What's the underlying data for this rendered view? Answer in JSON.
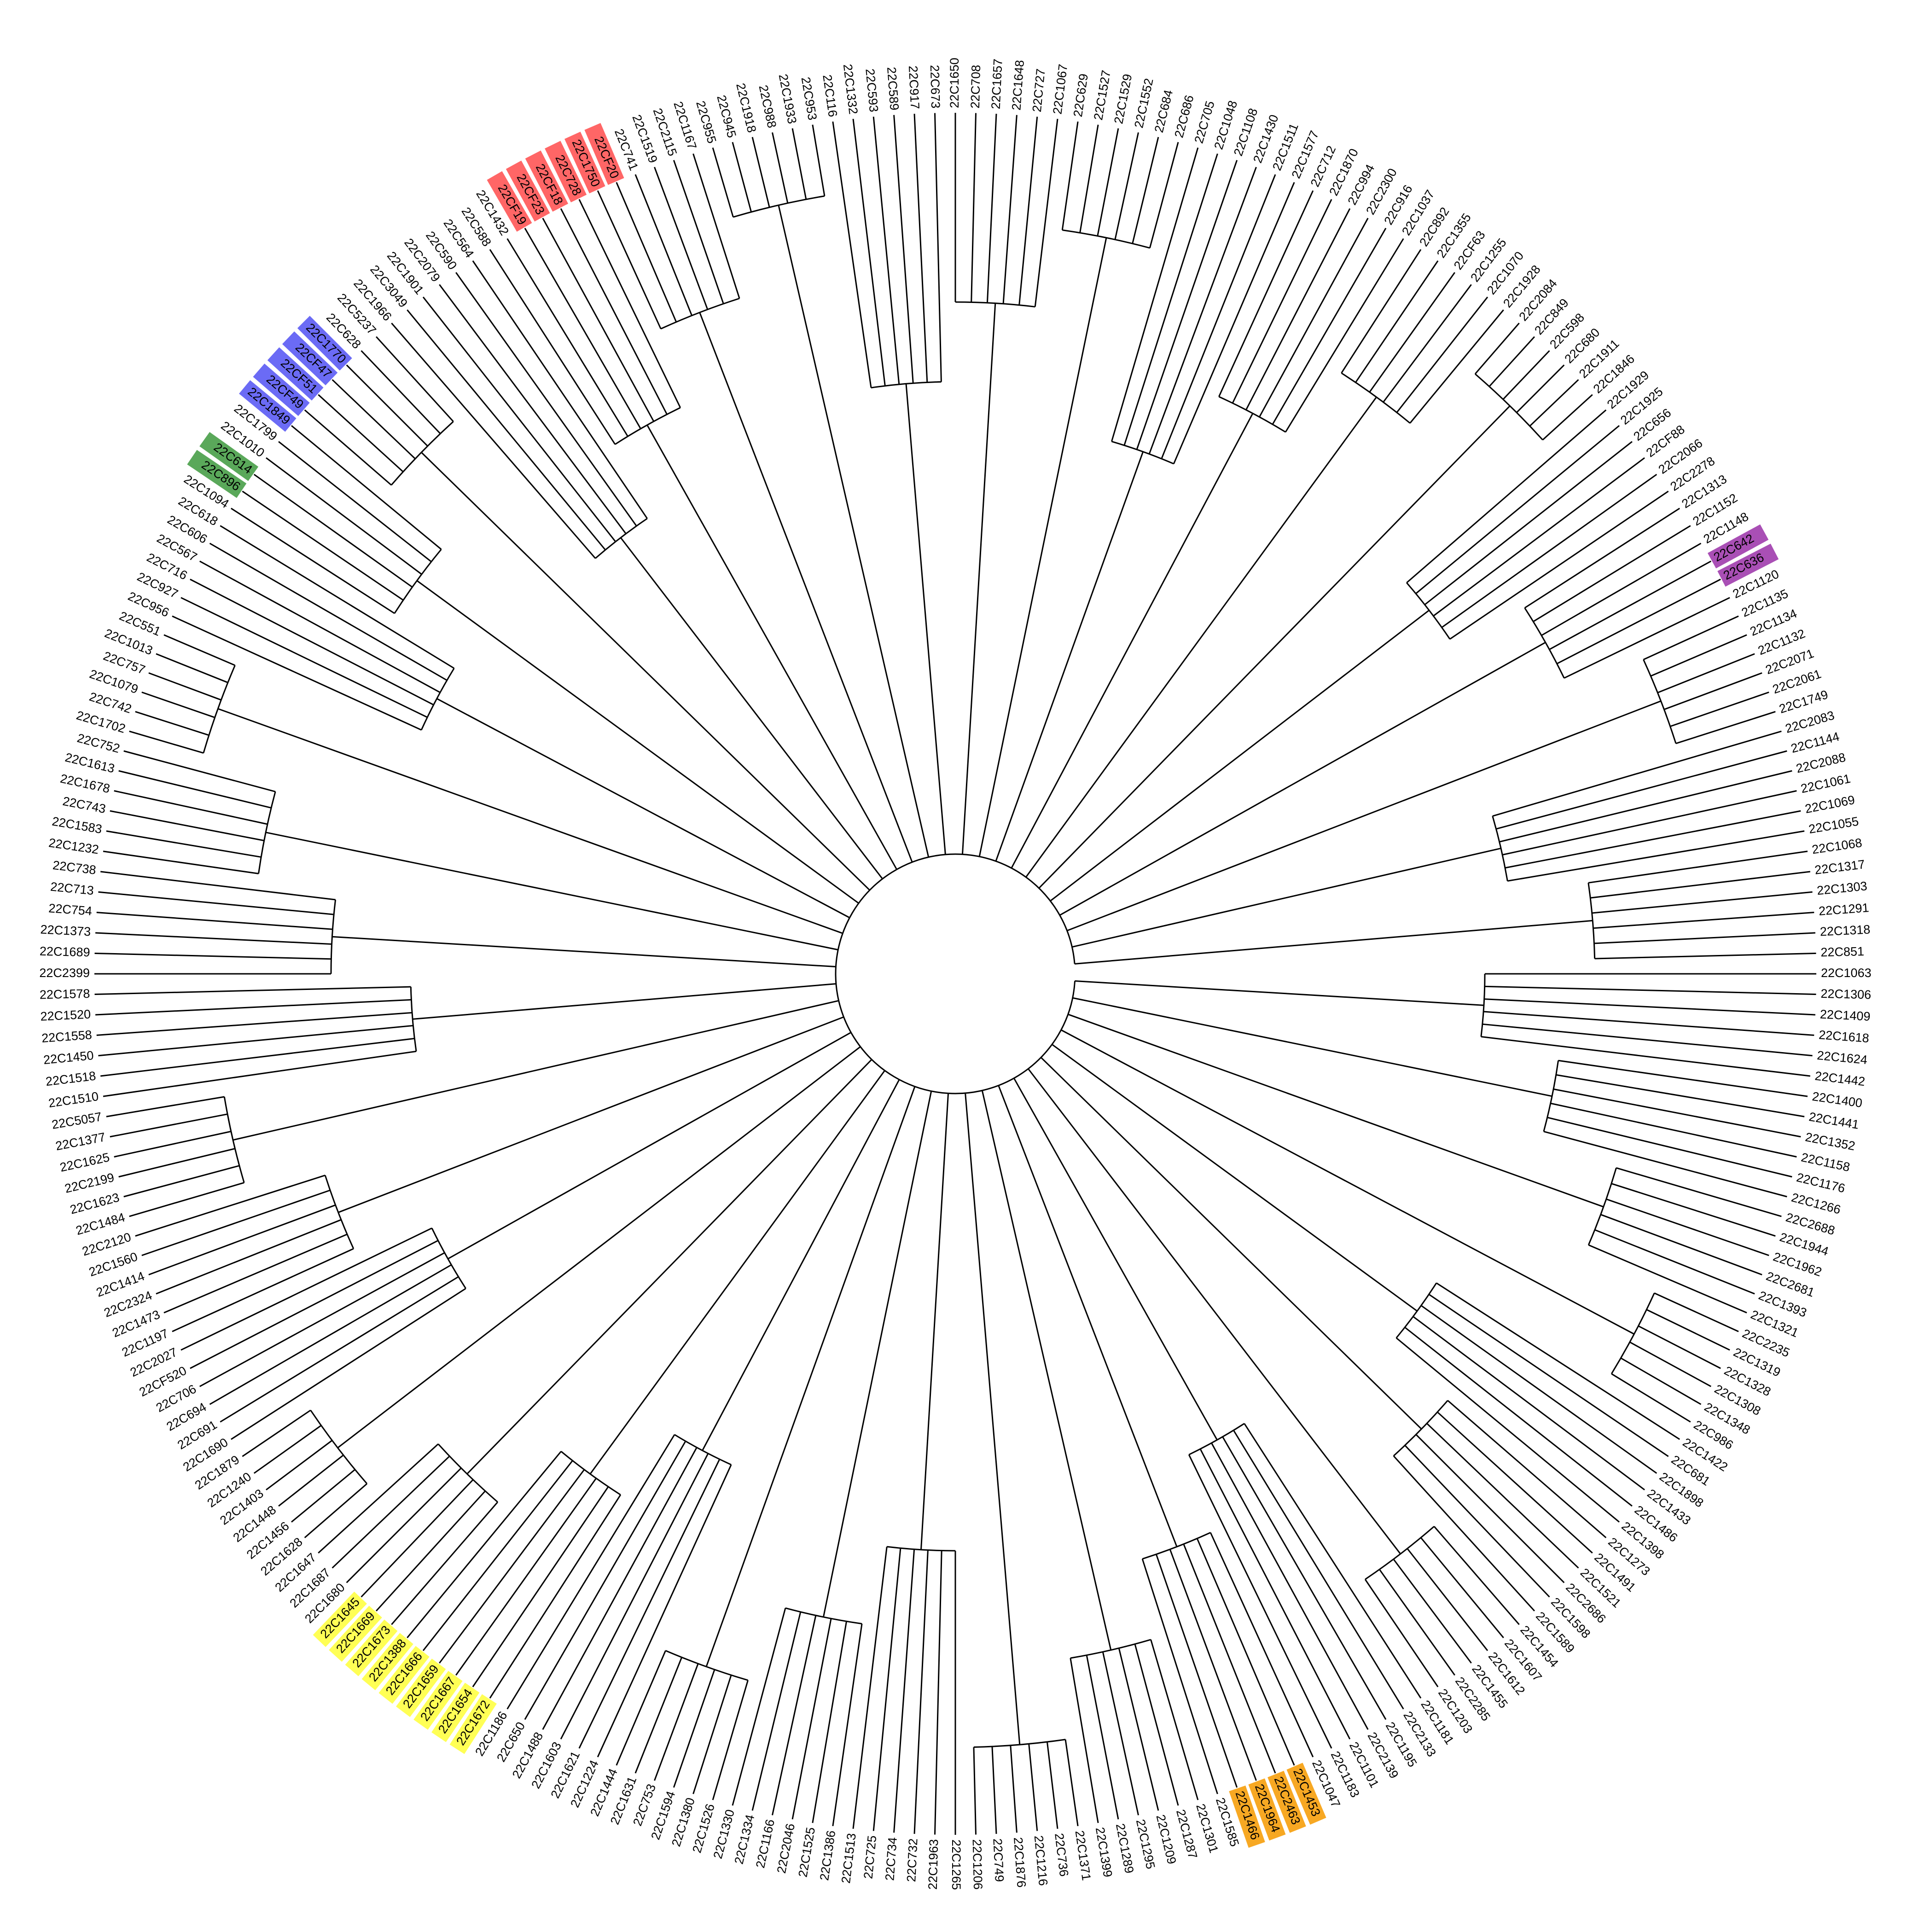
{
  "leaves": [
    {
      "label": "22C1063"
    },
    {
      "label": "22C1306"
    },
    {
      "label": "22C1409"
    },
    {
      "label": "22C1618"
    },
    {
      "label": "22C1624"
    },
    {
      "label": "22C1442"
    },
    {
      "label": "22C1400"
    },
    {
      "label": "22C1441"
    },
    {
      "label": "22C1352"
    },
    {
      "label": "22C1158"
    },
    {
      "label": "22C1176"
    },
    {
      "label": "22C1266"
    },
    {
      "label": "22C2688"
    },
    {
      "label": "22C1944"
    },
    {
      "label": "22C1962"
    },
    {
      "label": "22C2681"
    },
    {
      "label": "22C1393"
    },
    {
      "label": "22C1321"
    },
    {
      "label": "22C2235"
    },
    {
      "label": "22C1319"
    },
    {
      "label": "22C1328"
    },
    {
      "label": "22C1308"
    },
    {
      "label": "22C1348"
    },
    {
      "label": "22C986"
    },
    {
      "label": "22C1422"
    },
    {
      "label": "22C681"
    },
    {
      "label": "22C1898"
    },
    {
      "label": "22C1433"
    },
    {
      "label": "22C1486"
    },
    {
      "label": "22C1398"
    },
    {
      "label": "22C1273"
    },
    {
      "label": "22C1491"
    },
    {
      "label": "22C1521"
    },
    {
      "label": "22C2686"
    },
    {
      "label": "22C1598"
    },
    {
      "label": "22C1589"
    },
    {
      "label": "22C1454"
    },
    {
      "label": "22C1607"
    },
    {
      "label": "22C1612"
    },
    {
      "label": "22C1455"
    },
    {
      "label": "22C2285"
    },
    {
      "label": "22C1203"
    },
    {
      "label": "22C1181"
    },
    {
      "label": "22C2133"
    },
    {
      "label": "22C1195"
    },
    {
      "label": "22C2139"
    },
    {
      "label": "22C1101"
    },
    {
      "label": "22C1183"
    },
    {
      "label": "22C1047"
    },
    {
      "label": "22C1453",
      "highlight": "#f7a823"
    },
    {
      "label": "22C2463",
      "highlight": "#f7a823"
    },
    {
      "label": "22C1964",
      "highlight": "#f7a823"
    },
    {
      "label": "22C1466",
      "highlight": "#f7a823"
    },
    {
      "label": "22C1585"
    },
    {
      "label": "22C1301"
    },
    {
      "label": "22C1287"
    },
    {
      "label": "22C1209"
    },
    {
      "label": "22C1295"
    },
    {
      "label": "22C1289"
    },
    {
      "label": "22C1399"
    },
    {
      "label": "22C1371"
    },
    {
      "label": "22C736"
    },
    {
      "label": "22C1216"
    },
    {
      "label": "22C1876"
    },
    {
      "label": "22C749"
    },
    {
      "label": "22C1206"
    },
    {
      "label": "22C1265"
    },
    {
      "label": "22C1963"
    },
    {
      "label": "22C732"
    },
    {
      "label": "22C734"
    },
    {
      "label": "22C725"
    },
    {
      "label": "22C1513"
    },
    {
      "label": "22C1386"
    },
    {
      "label": "22C1525"
    },
    {
      "label": "22C2046"
    },
    {
      "label": "22C1166"
    },
    {
      "label": "22C1334"
    },
    {
      "label": "22C1330"
    },
    {
      "label": "22C1526"
    },
    {
      "label": "22C1380"
    },
    {
      "label": "22C1594"
    },
    {
      "label": "22C753"
    },
    {
      "label": "22C1631"
    },
    {
      "label": "22C1444"
    },
    {
      "label": "22C1224"
    },
    {
      "label": "22C1621"
    },
    {
      "label": "22C1603"
    },
    {
      "label": "22C1488"
    },
    {
      "label": "22C650"
    },
    {
      "label": "22C1186"
    },
    {
      "label": "22C1672",
      "highlight": "#ffff55"
    },
    {
      "label": "22C1654",
      "highlight": "#ffff55"
    },
    {
      "label": "22C1667",
      "highlight": "#ffff55"
    },
    {
      "label": "22C1659",
      "highlight": "#ffff55"
    },
    {
      "label": "22C1666",
      "highlight": "#ffff55"
    },
    {
      "label": "22C1388",
      "highlight": "#ffff55"
    },
    {
      "label": "22C1673",
      "highlight": "#ffff55"
    },
    {
      "label": "22C1669",
      "highlight": "#ffff55"
    },
    {
      "label": "22C1645",
      "highlight": "#ffff55"
    },
    {
      "label": "22C1680"
    },
    {
      "label": "22C1687"
    },
    {
      "label": "22C1647"
    },
    {
      "label": "22C1628"
    },
    {
      "label": "22C1456"
    },
    {
      "label": "22C1448"
    },
    {
      "label": "22C1403"
    },
    {
      "label": "22C1240"
    },
    {
      "label": "22C1879"
    },
    {
      "label": "22C1690"
    },
    {
      "label": "22C691"
    },
    {
      "label": "22C694"
    },
    {
      "label": "22C706"
    },
    {
      "label": "22CF520"
    },
    {
      "label": "22C2027"
    },
    {
      "label": "22C1197"
    },
    {
      "label": "22C1473"
    },
    {
      "label": "22C2324"
    },
    {
      "label": "22C1414"
    },
    {
      "label": "22C1560"
    },
    {
      "label": "22C2120"
    },
    {
      "label": "22C1484"
    },
    {
      "label": "22C1623"
    },
    {
      "label": "22C2199"
    },
    {
      "label": "22C1625"
    },
    {
      "label": "22C1377"
    },
    {
      "label": "22C5057"
    },
    {
      "label": "22C1510"
    },
    {
      "label": "22C1518"
    },
    {
      "label": "22C1450"
    },
    {
      "label": "22C1558"
    },
    {
      "label": "22C1520"
    },
    {
      "label": "22C1578"
    },
    {
      "label": "22C2399"
    },
    {
      "label": "22C1689"
    },
    {
      "label": "22C1373"
    },
    {
      "label": "22C754"
    },
    {
      "label": "22C713"
    },
    {
      "label": "22C738"
    },
    {
      "label": "22C1232"
    },
    {
      "label": "22C1583"
    },
    {
      "label": "22C743"
    },
    {
      "label": "22C1678"
    },
    {
      "label": "22C1613"
    },
    {
      "label": "22C752"
    },
    {
      "label": "22C1702"
    },
    {
      "label": "22C742"
    },
    {
      "label": "22C1079"
    },
    {
      "label": "22C757"
    },
    {
      "label": "22C1013"
    },
    {
      "label": "22C551"
    },
    {
      "label": "22C956"
    },
    {
      "label": "22C927"
    },
    {
      "label": "22C716"
    },
    {
      "label": "22C567"
    },
    {
      "label": "22C606"
    },
    {
      "label": "22C618"
    },
    {
      "label": "22C1094"
    },
    {
      "label": "22C896",
      "highlight": "#5aa85a"
    },
    {
      "label": "22C614",
      "highlight": "#5aa85a"
    },
    {
      "label": "22C1010"
    },
    {
      "label": "22C1799"
    },
    {
      "label": "22C1849",
      "highlight": "#6b6bf5"
    },
    {
      "label": "22CF49",
      "highlight": "#6b6bf5"
    },
    {
      "label": "22CF51",
      "highlight": "#6b6bf5"
    },
    {
      "label": "22CF47",
      "highlight": "#6b6bf5"
    },
    {
      "label": "22C1770",
      "highlight": "#6b6bf5"
    },
    {
      "label": "22C628"
    },
    {
      "label": "22C5237"
    },
    {
      "label": "22C1966"
    },
    {
      "label": "22C3049"
    },
    {
      "label": "22C1901"
    },
    {
      "label": "22C2079"
    },
    {
      "label": "22C590"
    },
    {
      "label": "22C564"
    },
    {
      "label": "22C588"
    },
    {
      "label": "22C1432"
    },
    {
      "label": "22CF19",
      "highlight": "#ff6666"
    },
    {
      "label": "22CF23",
      "highlight": "#ff6666"
    },
    {
      "label": "22CF18",
      "highlight": "#ff6666"
    },
    {
      "label": "22C728",
      "highlight": "#ff6666"
    },
    {
      "label": "22C1750",
      "highlight": "#ff6666"
    },
    {
      "label": "22CF20",
      "highlight": "#ff6666"
    },
    {
      "label": "22C741"
    },
    {
      "label": "22C1519"
    },
    {
      "label": "22C2115"
    },
    {
      "label": "22C1167"
    },
    {
      "label": "22C955"
    },
    {
      "label": "22C945"
    },
    {
      "label": "22C1918"
    },
    {
      "label": "22C988"
    },
    {
      "label": "22C1933"
    },
    {
      "label": "22C953"
    },
    {
      "label": "22C116"
    },
    {
      "label": "22C1332"
    },
    {
      "label": "22C593"
    },
    {
      "label": "22C589"
    },
    {
      "label": "22C917"
    },
    {
      "label": "22C673"
    },
    {
      "label": "22C1650"
    },
    {
      "label": "22C708"
    },
    {
      "label": "22C1657"
    },
    {
      "label": "22C1648"
    },
    {
      "label": "22C727"
    },
    {
      "label": "22C1067"
    },
    {
      "label": "22C629"
    },
    {
      "label": "22C1527"
    },
    {
      "label": "22C1529"
    },
    {
      "label": "22C1552"
    },
    {
      "label": "22C684"
    },
    {
      "label": "22C686"
    },
    {
      "label": "22C705"
    },
    {
      "label": "22C1048"
    },
    {
      "label": "22C1108"
    },
    {
      "label": "22C1430"
    },
    {
      "label": "22C1511"
    },
    {
      "label": "22C1577"
    },
    {
      "label": "22C712"
    },
    {
      "label": "22C1870"
    },
    {
      "label": "22C994"
    },
    {
      "label": "22C2300"
    },
    {
      "label": "22C916"
    },
    {
      "label": "22C1037"
    },
    {
      "label": "22C892"
    },
    {
      "label": "22C1355"
    },
    {
      "label": "22CF63"
    },
    {
      "label": "22C1255"
    },
    {
      "label": "22C1070"
    },
    {
      "label": "22C1928"
    },
    {
      "label": "22C2084"
    },
    {
      "label": "22C849"
    },
    {
      "label": "22C598"
    },
    {
      "label": "22C680"
    },
    {
      "label": "22C1911"
    },
    {
      "label": "22C1846"
    },
    {
      "label": "22C1929"
    },
    {
      "label": "22C1925"
    },
    {
      "label": "22C656"
    },
    {
      "label": "22CF88"
    },
    {
      "label": "22C2066"
    },
    {
      "label": "22C2278"
    },
    {
      "label": "22C1313"
    },
    {
      "label": "22C1152"
    },
    {
      "label": "22C1148"
    },
    {
      "label": "22C642",
      "highlight": "#a94fb5"
    },
    {
      "label": "22C636",
      "highlight": "#a94fb5"
    },
    {
      "label": "22C1120"
    },
    {
      "label": "22C1135"
    },
    {
      "label": "22C1134"
    },
    {
      "label": "22C1132"
    },
    {
      "label": "22C2071"
    },
    {
      "label": "22C2061"
    },
    {
      "label": "22C1749"
    },
    {
      "label": "22C2083"
    },
    {
      "label": "22C1144"
    },
    {
      "label": "22C2088"
    },
    {
      "label": "22C1061"
    },
    {
      "label": "22C1069"
    },
    {
      "label": "22C1055"
    },
    {
      "label": "22C1068"
    },
    {
      "label": "22C1317"
    },
    {
      "label": "22C1303"
    },
    {
      "label": "22C1291"
    },
    {
      "label": "22C1318"
    },
    {
      "label": "22C851"
    }
  ]
}
